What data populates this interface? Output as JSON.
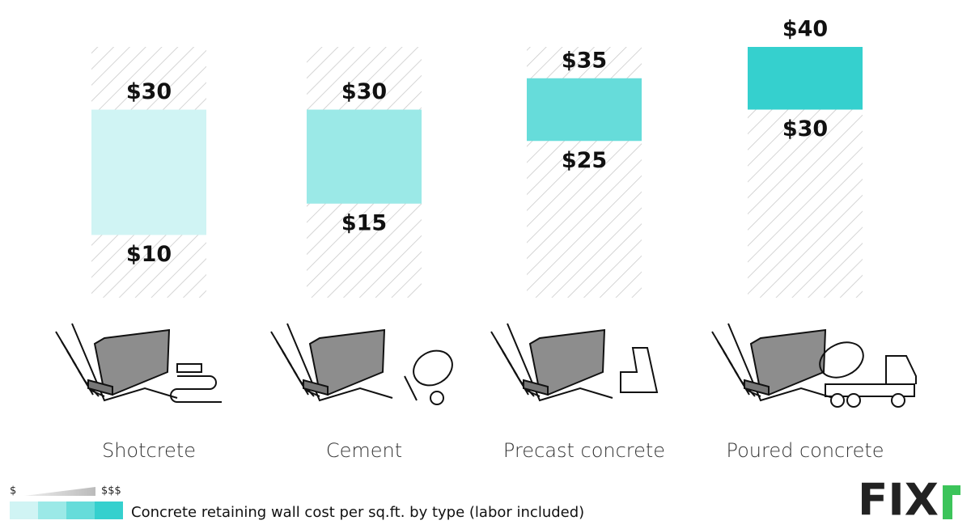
{
  "chart_data": {
    "type": "range_bar",
    "categories": [
      "Shotcrete",
      "Cement",
      "Precast concrete",
      "Poured concrete"
    ],
    "colors": [
      "#d0f4f4",
      "#9be9e7",
      "#66dcda",
      "#35d0ce"
    ],
    "series": [
      {
        "values": [
          10,
          15,
          25,
          30
        ],
        "value_labels": [
          "$10",
          "$15",
          "$25",
          "$30"
        ]
      },
      {
        "values": [
          30,
          30,
          35,
          40
        ],
        "value_labels": [
          "$30",
          "$30",
          "$35",
          "$40"
        ]
      }
    ],
    "ylim": [
      0,
      40
    ],
    "legend": {
      "low_label": "$",
      "high_label": "$$$",
      "caption": "Concrete retaining wall cost per sq.ft. by type (labor included)"
    },
    "logo": "FIX"
  }
}
